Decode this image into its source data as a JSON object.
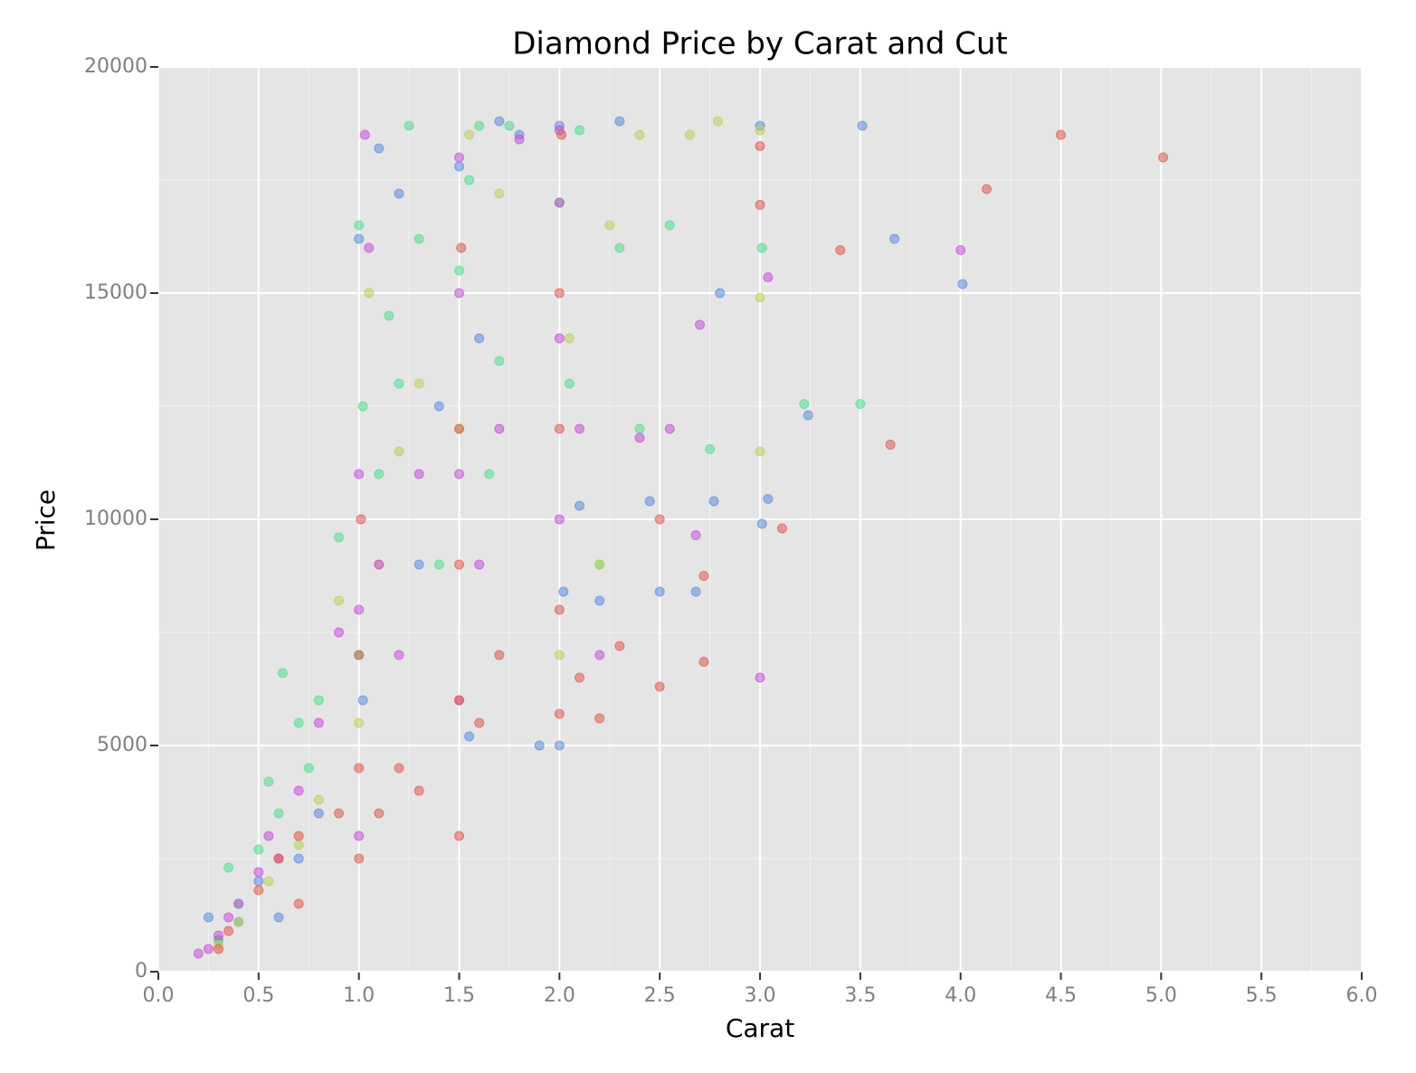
{
  "chart_data": {
    "type": "scatter",
    "title": "Diamond Price by Carat and Cut",
    "xlabel": "Carat",
    "ylabel": "Price",
    "xlim": [
      0,
      6
    ],
    "ylim": [
      0,
      20000
    ],
    "xticks": [
      {
        "value": 0,
        "label": "0.0"
      },
      0.5,
      {
        "value": 1,
        "label": "1.0"
      },
      1.5,
      {
        "value": 2,
        "label": "2.0"
      },
      2.5,
      {
        "value": 3,
        "label": "3.0"
      },
      3.5,
      {
        "value": 4,
        "label": "4.0"
      },
      4.5,
      {
        "value": 5,
        "label": "5.0"
      },
      5.5,
      {
        "value": 6,
        "label": "6.0"
      }
    ],
    "yticks": [
      0,
      5000,
      10000,
      15000,
      20000
    ],
    "grid": true,
    "series": [
      {
        "color": "#5b8ce0",
        "x": [
          0.25,
          0.3,
          0.4,
          0.5,
          0.6,
          0.7,
          0.8,
          1.0,
          1.02,
          1.1,
          1.2,
          1.3,
          1.4,
          1.5,
          1.55,
          1.6,
          1.7,
          1.8,
          1.9,
          2.0,
          2.0,
          2.02,
          2.1,
          2.2,
          2.3,
          2.45,
          2.5,
          2.68,
          2.77,
          2.8,
          3.0,
          3.01,
          3.04,
          3.24,
          3.51,
          3.67,
          4.01
        ],
        "values": [
          1200,
          700,
          1100,
          2000,
          1200,
          2500,
          3500,
          16200,
          6000,
          18200,
          17200,
          9000,
          12500,
          17800,
          5200,
          14000,
          18800,
          18500,
          5000,
          5000,
          18700,
          8400,
          10300,
          8200,
          18800,
          10400,
          8400,
          8400,
          10400,
          15000,
          18700,
          9900,
          10450,
          12300,
          18700,
          16200,
          15200
        ]
      },
      {
        "color": "#4fdf8e",
        "x": [
          0.3,
          0.35,
          0.4,
          0.5,
          0.55,
          0.6,
          0.62,
          0.7,
          0.75,
          0.8,
          0.9,
          1.0,
          1.0,
          1.02,
          1.1,
          1.15,
          1.2,
          1.25,
          1.3,
          1.4,
          1.5,
          1.55,
          1.6,
          1.65,
          1.7,
          1.75,
          2.0,
          2.05,
          2.1,
          2.2,
          2.3,
          2.4,
          2.55,
          2.75,
          3.01,
          3.22,
          3.5
        ],
        "values": [
          700,
          2300,
          1500,
          2700,
          4200,
          3500,
          6600,
          5500,
          4500,
          6000,
          9600,
          16500,
          7000,
          12500,
          11000,
          14500,
          13000,
          18700,
          16200,
          9000,
          15500,
          17500,
          18700,
          11000,
          13500,
          18700,
          17000,
          13000,
          18600,
          9000,
          16000,
          12000,
          16500,
          11550,
          16000,
          12550,
          12550
        ]
      },
      {
        "color": "#b9d25a",
        "x": [
          0.3,
          0.4,
          0.55,
          0.7,
          0.8,
          0.9,
          1.0,
          1.05,
          1.1,
          1.2,
          1.3,
          1.5,
          1.55,
          1.7,
          2.0,
          2.05,
          2.2,
          2.25,
          2.4,
          2.65,
          2.79,
          3.0,
          3.0,
          3.0
        ],
        "values": [
          600,
          1100,
          2000,
          2800,
          3800,
          8200,
          5500,
          15000,
          9000,
          11500,
          13000,
          12000,
          18500,
          17200,
          7000,
          14000,
          9000,
          16500,
          18500,
          18500,
          18800,
          11500,
          14900,
          18600
        ]
      },
      {
        "color": "#c84fdc",
        "x": [
          0.2,
          0.25,
          0.3,
          0.35,
          0.4,
          0.5,
          0.55,
          0.6,
          0.7,
          0.8,
          0.9,
          1.0,
          1.0,
          1.0,
          1.03,
          1.05,
          1.1,
          1.2,
          1.3,
          1.5,
          1.5,
          1.5,
          1.5,
          1.6,
          1.7,
          1.8,
          2.0,
          2.0,
          2.0,
          2.0,
          2.1,
          2.2,
          2.4,
          2.55,
          2.68,
          2.7,
          3.0,
          3.04,
          4.0
        ],
        "values": [
          400,
          500,
          800,
          1200,
          1500,
          2200,
          3000,
          2500,
          4000,
          5500,
          7500,
          3000,
          8000,
          11000,
          18500,
          16000,
          9000,
          7000,
          11000,
          6000,
          11000,
          15000,
          18000,
          9000,
          12000,
          18400,
          10000,
          14000,
          17000,
          18600,
          12000,
          7000,
          11800,
          12000,
          9650,
          14300,
          6500,
          15350,
          15950
        ]
      },
      {
        "color": "#e05a4f",
        "x": [
          0.3,
          0.35,
          0.5,
          0.6,
          0.7,
          0.7,
          0.9,
          1.0,
          1.0,
          1.0,
          1.01,
          1.1,
          1.2,
          1.3,
          1.5,
          1.5,
          1.5,
          1.5,
          1.51,
          1.6,
          1.7,
          2.0,
          2.0,
          2.0,
          2.0,
          2.01,
          2.1,
          2.2,
          2.3,
          2.5,
          2.5,
          2.72,
          2.72,
          3.0,
          3.0,
          3.11,
          3.4,
          3.65,
          4.13,
          4.5,
          5.01
        ],
        "values": [
          500,
          900,
          1800,
          2500,
          1500,
          3000,
          3500,
          2500,
          4500,
          7000,
          10000,
          3500,
          4500,
          4000,
          3000,
          6000,
          9000,
          12000,
          16000,
          5500,
          7000,
          5700,
          8000,
          12000,
          15000,
          18500,
          6500,
          5600,
          7200,
          6300,
          10000,
          8750,
          6850,
          18250,
          16950,
          9800,
          15950,
          11650,
          17300,
          18500,
          18000
        ]
      }
    ]
  }
}
